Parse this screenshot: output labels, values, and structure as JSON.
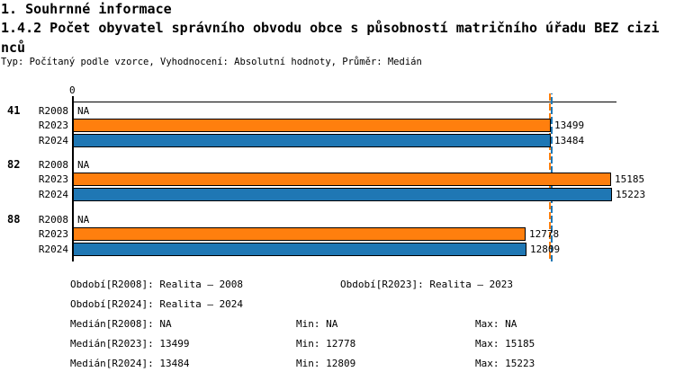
{
  "header": {
    "title": "1. Souhrnné informace",
    "subtitle": "1.4.2 Počet obyvatel správního obvodu obce s působností matričního úřadu BEZ cizinců",
    "meta": "Typ: Počítaný podle vzorce, Vyhodnocení: Absolutní hodnoty, Průměr: Medián"
  },
  "chart_data": {
    "type": "bar",
    "orientation": "horizontal",
    "x_origin_label": "0",
    "xlim": [
      0,
      15350
    ],
    "grid": false,
    "na_text": "NA",
    "series_colors": {
      "R2008": "#ffffff",
      "R2023": "#ff7f0e",
      "R2024": "#1f77b4"
    },
    "groups": [
      {
        "label": "41",
        "rows": [
          {
            "series": "R2008",
            "value": null,
            "display": "NA"
          },
          {
            "series": "R2023",
            "value": 13499,
            "display": "13499"
          },
          {
            "series": "R2024",
            "value": 13484,
            "display": "13484"
          }
        ]
      },
      {
        "label": "82",
        "rows": [
          {
            "series": "R2008",
            "value": null,
            "display": "NA"
          },
          {
            "series": "R2023",
            "value": 15185,
            "display": "15185"
          },
          {
            "series": "R2024",
            "value": 15223,
            "display": "15223"
          }
        ]
      },
      {
        "label": "88",
        "rows": [
          {
            "series": "R2008",
            "value": null,
            "display": "NA"
          },
          {
            "series": "R2023",
            "value": 12778,
            "display": "12778"
          },
          {
            "series": "R2024",
            "value": 12809,
            "display": "12809"
          }
        ]
      }
    ],
    "median_lines": [
      {
        "series": "R2023",
        "value": 13499,
        "color": "#ff7f0e"
      },
      {
        "series": "R2024",
        "value": 13484,
        "color": "#1f77b4"
      }
    ]
  },
  "footer": {
    "period_r2008": "Období[R2008]: Realita – 2008",
    "period_r2023": "Období[R2023]: Realita – 2023",
    "period_r2024": "Období[R2024]: Realita – 2024",
    "median_r2008": "Medián[R2008]: NA",
    "min_r2008": "Min: NA",
    "max_r2008": "Max: NA",
    "median_r2023": "Medián[R2023]: 13499",
    "min_r2023": "Min: 12778",
    "max_r2023": "Max: 15185",
    "median_r2024": "Medián[R2024]: 13484",
    "min_r2024": "Min: 12809",
    "max_r2024": "Max: 15223"
  }
}
